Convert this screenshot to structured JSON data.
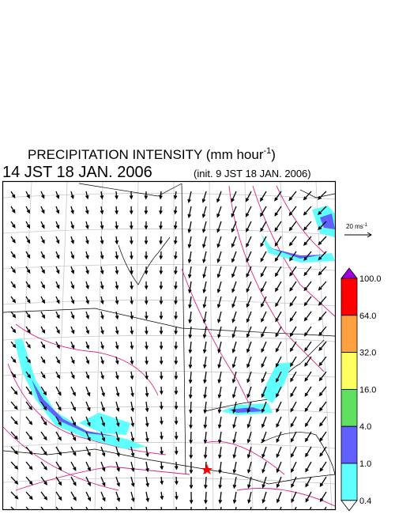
{
  "title": {
    "text": "PRECIPITATION INTENSITY (mm hour",
    "superscript": "-1",
    "suffix": ")"
  },
  "valid_time": "14 JST 18 JAN. 2006",
  "init_time": "(init. 9 JST 18 JAN. 2006)",
  "vector_scale": {
    "text": "20 ms",
    "superscript": "-1"
  },
  "colorbar": {
    "levels": [
      "100.0",
      "64.0",
      "32.0",
      "16.0",
      "4.0",
      "1.0",
      "0.4"
    ],
    "colors": [
      "#a000e0",
      "#ff0000",
      "#ffa040",
      "#ffff60",
      "#60e060",
      "#6060ff",
      "#60ffff",
      "#ffffff"
    ]
  }
}
